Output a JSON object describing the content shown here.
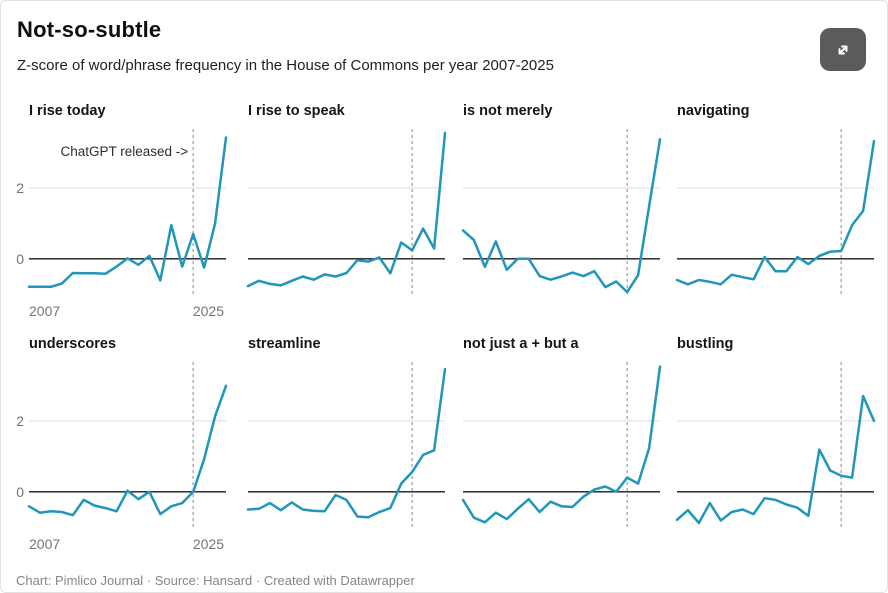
{
  "header": {
    "title": "Not-so-subtle",
    "subtitle": "Z-score of word/phrase frequency in the House of Commons per year 2007-2025"
  },
  "toolbar": {
    "expand_icon": "expand-arrows"
  },
  "footer": {
    "text": "Chart: Pimlico Journal · Source: Hansard · Created with Datawrapper"
  },
  "colors": {
    "line": "#2196bb",
    "zero_line": "#1a1a1a",
    "gridline": "#dcdcdc",
    "dashed_line": "#9e9e9e",
    "tick_label": "#757575",
    "annotation": "#2e2e2e",
    "expand_button_bg": "#5b5b5b"
  },
  "chart_data": {
    "type": "line",
    "layout": "small-multiples-2x4",
    "title": "Not-so-subtle",
    "subtitle": "Z-score of word/phrase frequency in the House of Commons per year 2007-2025",
    "x": [
      2007,
      2008,
      2009,
      2010,
      2011,
      2012,
      2013,
      2014,
      2015,
      2016,
      2017,
      2018,
      2019,
      2020,
      2021,
      2022,
      2023,
      2024,
      2025
    ],
    "ylim": [
      -1.05,
      3.66
    ],
    "yticks": [
      0,
      2
    ],
    "xtick_labels": [
      "2007",
      "2025"
    ],
    "grid": "y-only",
    "vline": {
      "x": 2022,
      "style": "dashed",
      "label": "ChatGPT released ->",
      "label_chart": "I rise today"
    },
    "series": [
      {
        "name": "I rise today",
        "values": [
          -0.79,
          -0.79,
          -0.79,
          -0.7,
          -0.4,
          -0.41,
          -0.41,
          -0.42,
          -0.22,
          0.01,
          -0.17,
          0.08,
          -0.61,
          0.95,
          -0.22,
          0.7,
          -0.25,
          1.0,
          3.42
        ]
      },
      {
        "name": "I rise to speak",
        "values": [
          -0.77,
          -0.62,
          -0.71,
          -0.75,
          -0.62,
          -0.5,
          -0.59,
          -0.44,
          -0.5,
          -0.4,
          -0.04,
          -0.08,
          0.04,
          -0.41,
          0.46,
          0.24,
          0.85,
          0.29,
          3.55
        ]
      },
      {
        "name": "is not merely",
        "values": [
          0.8,
          0.53,
          -0.23,
          0.49,
          -0.31,
          0.0,
          0.0,
          -0.49,
          -0.59,
          -0.5,
          -0.39,
          -0.49,
          -0.35,
          -0.8,
          -0.64,
          -0.94,
          -0.46,
          1.48,
          3.37
        ]
      },
      {
        "name": "navigating",
        "values": [
          -0.6,
          -0.72,
          -0.6,
          -0.65,
          -0.72,
          -0.45,
          -0.52,
          -0.58,
          0.05,
          -0.35,
          -0.35,
          0.05,
          -0.15,
          0.08,
          0.2,
          0.22,
          0.95,
          1.35,
          3.32
        ]
      },
      {
        "name": "underscores",
        "values": [
          -0.41,
          -0.59,
          -0.55,
          -0.57,
          -0.66,
          -0.23,
          -0.39,
          -0.46,
          -0.55,
          0.03,
          -0.21,
          0.0,
          -0.63,
          -0.41,
          -0.32,
          0.0,
          0.92,
          2.13,
          2.99
        ]
      },
      {
        "name": "streamline",
        "values": [
          -0.5,
          -0.48,
          -0.32,
          -0.52,
          -0.3,
          -0.5,
          -0.54,
          -0.55,
          -0.09,
          -0.23,
          -0.7,
          -0.72,
          -0.57,
          -0.46,
          0.23,
          0.56,
          1.04,
          1.17,
          3.46
        ]
      },
      {
        "name": "not just a + but a",
        "values": [
          -0.23,
          -0.73,
          -0.86,
          -0.59,
          -0.77,
          -0.48,
          -0.21,
          -0.57,
          -0.28,
          -0.41,
          -0.43,
          -0.14,
          0.06,
          0.15,
          0.0,
          0.4,
          0.23,
          1.23,
          3.53
        ]
      },
      {
        "name": "bustling",
        "values": [
          -0.79,
          -0.52,
          -0.88,
          -0.32,
          -0.81,
          -0.57,
          -0.5,
          -0.63,
          -0.18,
          -0.23,
          -0.36,
          -0.45,
          -0.68,
          1.19,
          0.6,
          0.45,
          0.4,
          2.7,
          2.0
        ]
      }
    ]
  }
}
